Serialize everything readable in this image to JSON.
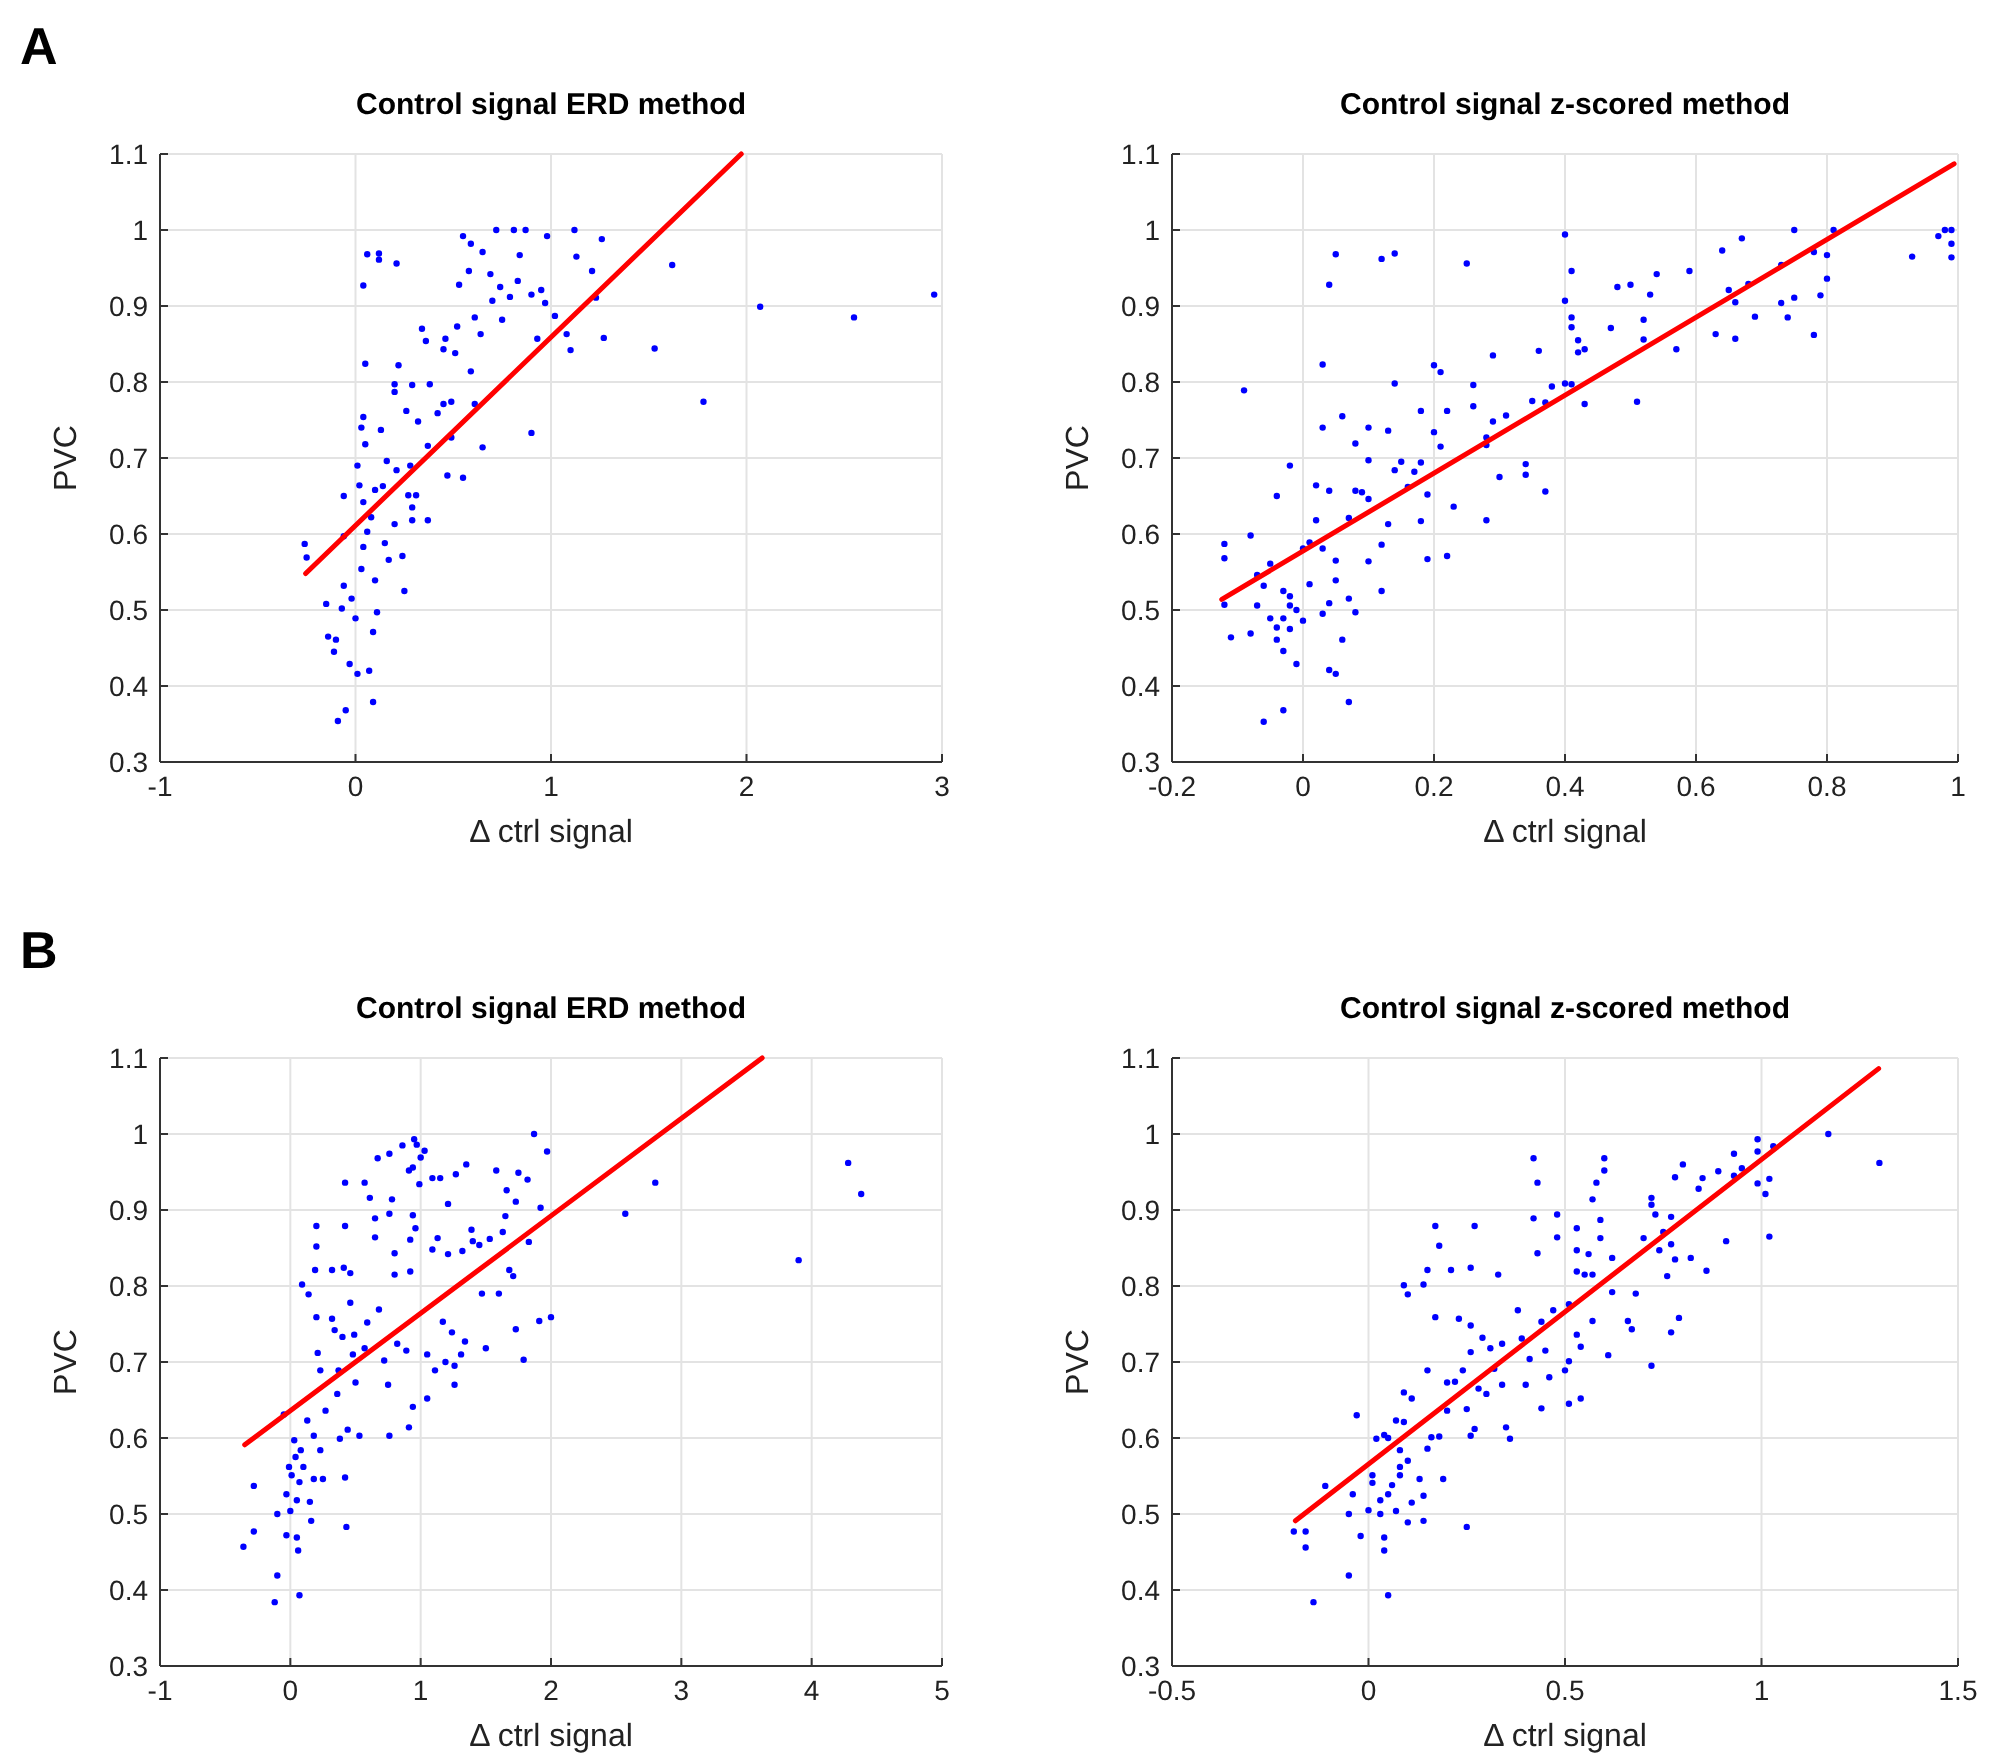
{
  "chart_data": [
    {
      "type": "scatter",
      "title": "Control signal ERD method",
      "xlabel": "Δ ctrl signal",
      "ylabel": "PVC",
      "annotations": [
        "A"
      ],
      "xlim": [
        -1,
        3
      ],
      "ylim": [
        0.3,
        1.1
      ],
      "xticks": [
        -1,
        0,
        1,
        2,
        3
      ],
      "yticks": [
        0.3,
        0.4,
        0.5,
        0.6,
        0.7,
        0.8,
        0.9,
        1,
        1.1
      ],
      "grid": true,
      "series": [
        {
          "color": "#0000ff",
          "x": [
            -0.26,
            -0.25,
            -0.15,
            -0.14,
            -0.1,
            -0.11,
            -0.09,
            -0.05,
            -0.03,
            0.01,
            0.07,
            0.09,
            -0.07,
            -0.06,
            -0.02,
            0.0,
            0.03,
            0.04,
            -0.06,
            0.01,
            0.02,
            0.04,
            -0.06,
            0.05,
            0.03,
            0.04,
            0.05,
            0.04,
            0.06,
            0.12,
            0.12,
            0.21,
            0.09,
            0.11,
            0.1,
            0.06,
            0.15,
            0.17,
            0.24,
            0.25,
            0.2,
            0.08,
            0.1,
            0.14,
            0.16,
            0.21,
            0.28,
            0.27,
            0.29,
            0.29,
            0.31,
            0.37,
            0.37,
            0.32,
            0.26,
            0.13,
            0.2,
            0.2,
            0.22,
            0.29,
            0.38,
            0.42,
            0.45,
            0.49,
            0.49,
            0.47,
            0.55,
            0.34,
            0.36,
            0.46,
            0.45,
            0.51,
            0.52,
            0.59,
            0.61,
            0.65,
            0.61,
            0.64,
            0.53,
            0.58,
            0.55,
            0.59,
            0.65,
            0.69,
            0.7,
            0.74,
            0.75,
            0.72,
            0.81,
            0.87,
            0.84,
            0.83,
            0.79,
            0.9,
            0.95,
            0.98,
            0.97,
            0.93,
            0.9,
            1.02,
            1.08,
            1.1,
            1.12,
            1.13,
            1.21,
            1.23,
            1.26,
            1.27,
            1.53,
            1.62,
            1.78,
            2.07,
            2.55,
            2.96
          ],
          "values": [
            0.587,
            0.569,
            0.508,
            0.465,
            0.461,
            0.445,
            0.354,
            0.368,
            0.429,
            0.416,
            0.42,
            0.379,
            0.502,
            0.532,
            0.515,
            0.489,
            0.554,
            0.583,
            0.597,
            0.69,
            0.664,
            0.642,
            0.65,
            0.718,
            0.74,
            0.754,
            0.824,
            0.927,
            0.968,
            0.969,
            0.961,
            0.956,
            0.471,
            0.497,
            0.539,
            0.603,
            0.588,
            0.566,
            0.571,
            0.525,
            0.613,
            0.622,
            0.658,
            0.663,
            0.696,
            0.684,
            0.69,
            0.651,
            0.635,
            0.618,
            0.651,
            0.618,
            0.716,
            0.748,
            0.762,
            0.737,
            0.797,
            0.787,
            0.822,
            0.796,
            0.797,
            0.759,
            0.771,
            0.774,
            0.727,
            0.677,
            0.674,
            0.87,
            0.854,
            0.857,
            0.843,
            0.838,
            0.873,
            0.814,
            0.771,
            0.714,
            0.885,
            0.863,
            0.928,
            0.946,
            0.992,
            0.982,
            0.971,
            0.942,
            0.907,
            0.925,
            0.882,
            1.0,
            1.0,
            1.0,
            0.967,
            0.933,
            0.912,
            0.915,
            0.921,
            0.992,
            0.904,
            0.857,
            0.733,
            0.887,
            0.863,
            0.842,
            1.0,
            0.965,
            0.946,
            0.911,
            0.988,
            0.858,
            0.844,
            0.954,
            0.774,
            0.899,
            0.885,
            0.915
          ]
        },
        {
          "type": "line",
          "color": "#ff0000",
          "x": [
            -0.255,
            1.973
          ],
          "values": [
            0.548,
            1.1
          ]
        }
      ]
    },
    {
      "type": "scatter",
      "title": "Control signal z-scored method",
      "xlabel": "Δ ctrl signal",
      "ylabel": "PVC",
      "xlim": [
        -0.2,
        1
      ],
      "ylim": [
        0.3,
        1.1
      ],
      "xticks": [
        -0.2,
        0,
        0.2,
        0.4,
        0.6,
        0.8,
        1
      ],
      "yticks": [
        0.3,
        0.4,
        0.5,
        0.6,
        0.7,
        0.8,
        0.9,
        1,
        1.1
      ],
      "grid": true,
      "series": [
        {
          "color": "#0000ff",
          "x": [
            -0.12,
            -0.12,
            -0.12,
            -0.11,
            -0.09,
            -0.08,
            -0.08,
            -0.07,
            -0.06,
            -0.07,
            -0.06,
            -0.05,
            -0.05,
            -0.04,
            -0.04,
            -0.04,
            -0.03,
            -0.03,
            -0.03,
            -0.03,
            -0.02,
            -0.02,
            -0.02,
            -0.02,
            -0.01,
            -0.01,
            0.0,
            0.0,
            0.01,
            0.01,
            0.02,
            0.02,
            0.03,
            0.03,
            0.03,
            0.03,
            0.04,
            0.04,
            0.04,
            0.04,
            0.05,
            0.05,
            0.05,
            0.05,
            0.06,
            0.06,
            0.07,
            0.07,
            0.07,
            0.08,
            0.08,
            0.08,
            0.09,
            0.1,
            0.1,
            0.1,
            0.1,
            0.12,
            0.12,
            0.12,
            0.13,
            0.13,
            0.14,
            0.14,
            0.14,
            0.15,
            0.16,
            0.17,
            0.18,
            0.18,
            0.18,
            0.19,
            0.2,
            0.19,
            0.2,
            0.21,
            0.21,
            0.22,
            0.22,
            0.23,
            0.25,
            0.26,
            0.26,
            0.28,
            0.28,
            0.28,
            0.29,
            0.29,
            0.3,
            0.31,
            0.34,
            0.34,
            0.35,
            0.36,
            0.37,
            0.37,
            0.38,
            0.4,
            0.4,
            0.41,
            0.41,
            0.41,
            0.42,
            0.42,
            0.43,
            0.4,
            0.41,
            0.43,
            0.47,
            0.48,
            0.5,
            0.51,
            0.52,
            0.52,
            0.53,
            0.54,
            0.57,
            0.59,
            0.63,
            0.64,
            0.65,
            0.66,
            0.66,
            0.67,
            0.68,
            0.69,
            0.73,
            0.73,
            0.74,
            0.75,
            0.75,
            0.78,
            0.78,
            0.79,
            0.8,
            0.8,
            0.81,
            0.93,
            0.97,
            0.98,
            0.99,
            0.99,
            0.99
          ],
          "values": [
            0.568,
            0.587,
            0.507,
            0.464,
            0.789,
            0.469,
            0.598,
            0.506,
            0.353,
            0.546,
            0.532,
            0.561,
            0.489,
            0.65,
            0.477,
            0.461,
            0.446,
            0.525,
            0.368,
            0.489,
            0.518,
            0.506,
            0.69,
            0.475,
            0.5,
            0.429,
            0.581,
            0.486,
            0.589,
            0.534,
            0.664,
            0.618,
            0.581,
            0.823,
            0.74,
            0.495,
            0.657,
            0.421,
            0.509,
            0.928,
            0.416,
            0.565,
            0.968,
            0.539,
            0.755,
            0.461,
            0.621,
            0.515,
            0.379,
            0.719,
            0.497,
            0.657,
            0.655,
            0.646,
            0.74,
            0.697,
            0.564,
            0.586,
            0.525,
            0.962,
            0.613,
            0.736,
            0.969,
            0.798,
            0.684,
            0.695,
            0.662,
            0.682,
            0.694,
            0.762,
            0.617,
            0.652,
            0.822,
            0.567,
            0.734,
            0.813,
            0.715,
            0.762,
            0.571,
            0.636,
            0.956,
            0.796,
            0.768,
            0.618,
            0.727,
            0.717,
            0.835,
            0.748,
            0.675,
            0.756,
            0.678,
            0.692,
            0.775,
            0.841,
            0.656,
            0.773,
            0.794,
            0.994,
            0.907,
            0.885,
            0.946,
            0.872,
            0.839,
            0.855,
            0.843,
            0.798,
            0.797,
            0.771,
            0.871,
            0.925,
            0.928,
            0.774,
            0.882,
            0.856,
            0.915,
            0.942,
            0.843,
            0.946,
            0.863,
            0.973,
            0.921,
            0.905,
            0.857,
            0.989,
            0.929,
            0.886,
            0.954,
            0.904,
            0.885,
            0.911,
            1.0,
            0.862,
            0.971,
            0.914,
            0.936,
            0.967,
            1.0,
            0.965,
            0.992,
            1.0,
            0.964,
            0.982,
            1.0
          ]
        },
        {
          "type": "line",
          "color": "#ff0000",
          "x": [
            -0.124,
            0.994
          ],
          "values": [
            0.514,
            1.087
          ]
        }
      ]
    },
    {
      "type": "scatter",
      "title": "Control signal ERD method",
      "xlabel": "Δ ctrl signal",
      "ylabel": "PVC",
      "annotations": [
        "B"
      ],
      "xlim": [
        -1,
        5
      ],
      "ylim": [
        0.3,
        1.1
      ],
      "xticks": [
        -1,
        0,
        1,
        2,
        3,
        4,
        5
      ],
      "yticks": [
        0.3,
        0.4,
        0.5,
        0.6,
        0.7,
        0.8,
        0.9,
        1,
        1.1
      ],
      "grid": true,
      "series": [
        {
          "color": "#0000ff",
          "x": [
            -0.36,
            -0.28,
            -0.28,
            -0.12,
            -0.1,
            -0.1,
            -0.05,
            -0.03,
            -0.03,
            -0.01,
            0.0,
            0.01,
            0.03,
            0.04,
            0.05,
            0.05,
            0.06,
            0.07,
            0.07,
            0.08,
            0.09,
            0.1,
            0.13,
            0.14,
            0.15,
            0.16,
            0.18,
            0.18,
            0.19,
            0.2,
            0.2,
            0.2,
            0.21,
            0.23,
            0.23,
            0.25,
            0.27,
            0.32,
            0.32,
            0.34,
            0.36,
            0.37,
            0.38,
            0.4,
            0.41,
            0.42,
            0.42,
            0.42,
            0.43,
            0.44,
            0.46,
            0.46,
            0.48,
            0.49,
            0.5,
            0.53,
            0.57,
            0.57,
            0.59,
            0.61,
            0.65,
            0.65,
            0.67,
            0.68,
            0.72,
            0.75,
            0.76,
            0.76,
            0.76,
            0.78,
            0.8,
            0.8,
            0.82,
            0.86,
            0.89,
            0.91,
            0.92,
            0.91,
            0.92,
            0.94,
            0.94,
            0.94,
            0.95,
            0.96,
            0.97,
            0.99,
            1.0,
            1.03,
            1.05,
            1.05,
            1.09,
            1.09,
            1.11,
            1.13,
            1.15,
            1.17,
            1.19,
            1.21,
            1.21,
            1.24,
            1.26,
            1.26,
            1.27,
            1.31,
            1.32,
            1.35,
            1.34,
            1.39,
            1.4,
            1.45,
            1.47,
            1.5,
            1.53,
            1.58,
            1.6,
            1.63,
            1.65,
            1.66,
            1.68,
            1.71,
            1.73,
            1.73,
            1.75,
            1.79,
            1.82,
            1.83,
            1.87,
            1.91,
            1.92,
            1.97,
            2.0,
            2.57,
            2.8,
            3.9,
            4.28,
            4.38
          ],
          "values": [
            0.457,
            0.537,
            0.477,
            0.384,
            0.419,
            0.5,
            0.631,
            0.472,
            0.526,
            0.562,
            0.504,
            0.551,
            0.597,
            0.575,
            0.469,
            0.518,
            0.452,
            0.393,
            0.542,
            0.584,
            0.802,
            0.562,
            0.623,
            0.789,
            0.516,
            0.491,
            0.546,
            0.603,
            0.821,
            0.879,
            0.852,
            0.759,
            0.712,
            0.689,
            0.584,
            0.546,
            0.636,
            0.821,
            0.757,
            0.742,
            0.658,
            0.689,
            0.599,
            0.733,
            0.824,
            0.548,
            0.879,
            0.936,
            0.483,
            0.611,
            0.817,
            0.778,
            0.71,
            0.736,
            0.673,
            0.603,
            0.936,
            0.718,
            0.752,
            0.916,
            0.864,
            0.889,
            0.968,
            0.769,
            0.702,
            0.67,
            0.974,
            0.603,
            0.895,
            0.914,
            0.843,
            0.815,
            0.724,
            0.985,
            0.715,
            0.952,
            0.861,
            0.614,
            0.819,
            0.893,
            0.641,
            0.956,
            0.993,
            0.876,
            0.986,
            0.934,
            0.969,
            0.978,
            0.71,
            0.652,
            0.942,
            0.848,
            0.689,
            0.863,
            0.942,
            0.753,
            0.7,
            0.842,
            0.908,
            0.739,
            0.695,
            0.67,
            0.947,
            0.71,
            0.846,
            0.96,
            0.727,
            0.874,
            0.859,
            0.854,
            0.79,
            0.718,
            0.862,
            0.952,
            0.79,
            0.871,
            0.892,
            0.926,
            0.821,
            0.813,
            0.743,
            0.911,
            0.949,
            0.703,
            0.94,
            0.858,
            1.0,
            0.754,
            0.903,
            0.977,
            0.759,
            0.895,
            0.936,
            0.834,
            0.962,
            0.921
          ]
        },
        {
          "type": "line",
          "color": "#ff0000",
          "x": [
            -0.35,
            3.62
          ],
          "values": [
            0.591,
            1.1
          ]
        }
      ]
    },
    {
      "type": "scatter",
      "title": "Control signal z-scored method",
      "xlabel": "Δ ctrl signal",
      "ylabel": "PVC",
      "xlim": [
        -0.5,
        1.5
      ],
      "ylim": [
        0.3,
        1.1
      ],
      "xticks": [
        -0.5,
        0,
        0.5,
        1,
        1.5
      ],
      "yticks": [
        0.3,
        0.4,
        0.5,
        0.6,
        0.7,
        0.8,
        0.9,
        1,
        1.1
      ],
      "grid": true,
      "series": [
        {
          "color": "#0000ff",
          "x": [
            -0.19,
            -0.16,
            -0.16,
            -0.14,
            -0.11,
            -0.05,
            -0.05,
            -0.04,
            -0.03,
            -0.02,
            0.0,
            0.01,
            0.01,
            0.02,
            0.03,
            0.03,
            0.04,
            0.04,
            0.04,
            0.05,
            0.05,
            0.05,
            0.06,
            0.07,
            0.07,
            0.08,
            0.08,
            0.08,
            0.09,
            0.09,
            0.09,
            0.1,
            0.1,
            0.1,
            0.11,
            0.11,
            0.13,
            0.14,
            0.14,
            0.14,
            0.15,
            0.15,
            0.15,
            0.16,
            0.17,
            0.17,
            0.18,
            0.18,
            0.19,
            0.2,
            0.2,
            0.21,
            0.22,
            0.23,
            0.24,
            0.25,
            0.25,
            0.26,
            0.26,
            0.26,
            0.26,
            0.27,
            0.27,
            0.28,
            0.29,
            0.3,
            0.31,
            0.32,
            0.33,
            0.34,
            0.34,
            0.35,
            0.36,
            0.38,
            0.39,
            0.4,
            0.41,
            0.42,
            0.42,
            0.43,
            0.43,
            0.44,
            0.44,
            0.45,
            0.46,
            0.47,
            0.48,
            0.48,
            0.5,
            0.51,
            0.51,
            0.51,
            0.53,
            0.53,
            0.53,
            0.53,
            0.54,
            0.54,
            0.55,
            0.56,
            0.57,
            0.57,
            0.57,
            0.58,
            0.59,
            0.59,
            0.6,
            0.6,
            0.61,
            0.62,
            0.62,
            0.66,
            0.67,
            0.68,
            0.7,
            0.72,
            0.72,
            0.72,
            0.73,
            0.74,
            0.75,
            0.76,
            0.77,
            0.77,
            0.77,
            0.78,
            0.78,
            0.79,
            0.8,
            0.82,
            0.84,
            0.85,
            0.86,
            0.89,
            0.91,
            0.93,
            0.93,
            0.95,
            0.99,
            0.99,
            0.99,
            1.01,
            1.02,
            1.02,
            1.03,
            1.17,
            1.3
          ],
          "values": [
            0.477,
            0.477,
            0.456,
            0.384,
            0.537,
            0.419,
            0.5,
            0.526,
            0.63,
            0.471,
            0.505,
            0.541,
            0.551,
            0.599,
            0.5,
            0.518,
            0.469,
            0.452,
            0.604,
            0.393,
            0.6,
            0.526,
            0.538,
            0.504,
            0.623,
            0.562,
            0.551,
            0.584,
            0.66,
            0.801,
            0.621,
            0.57,
            0.789,
            0.489,
            0.652,
            0.515,
            0.546,
            0.491,
            0.524,
            0.802,
            0.821,
            0.689,
            0.586,
            0.601,
            0.879,
            0.759,
            0.853,
            0.602,
            0.546,
            0.673,
            0.636,
            0.821,
            0.674,
            0.757,
            0.689,
            0.638,
            0.483,
            0.824,
            0.748,
            0.713,
            0.603,
            0.879,
            0.612,
            0.665,
            0.732,
            0.658,
            0.718,
            0.691,
            0.815,
            0.724,
            0.67,
            0.614,
            0.599,
            0.768,
            0.731,
            0.67,
            0.704,
            0.889,
            0.968,
            0.936,
            0.843,
            0.639,
            0.753,
            0.715,
            0.68,
            0.768,
            0.894,
            0.864,
            0.689,
            0.701,
            0.645,
            0.776,
            0.876,
            0.819,
            0.736,
            0.847,
            0.652,
            0.72,
            0.815,
            0.842,
            0.914,
            0.754,
            0.815,
            0.936,
            0.887,
            0.863,
            0.952,
            0.968,
            0.709,
            0.837,
            0.792,
            0.754,
            0.743,
            0.79,
            0.863,
            0.695,
            0.916,
            0.907,
            0.894,
            0.847,
            0.871,
            0.813,
            0.891,
            0.739,
            0.855,
            0.835,
            0.943,
            0.758,
            0.96,
            0.837,
            0.928,
            0.942,
            0.82,
            0.951,
            0.859,
            0.974,
            0.945,
            0.955,
            0.993,
            0.935,
            0.977,
            0.921,
            0.865,
            0.941,
            0.984,
            1.0,
            0.962
          ]
        },
        {
          "type": "line",
          "color": "#ff0000",
          "x": [
            -0.186,
            1.298
          ],
          "values": [
            0.491,
            1.086
          ]
        }
      ]
    }
  ]
}
